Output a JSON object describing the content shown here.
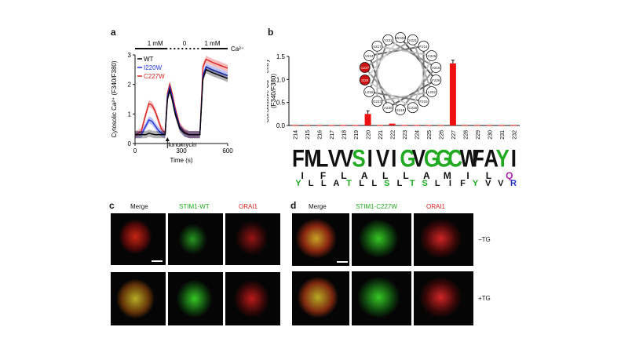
{
  "panels": {
    "a": {
      "letter": "a",
      "conditions": {
        "left": "1 mM",
        "middle": "0",
        "right": "1 mM",
        "ion": "Ca²⁺"
      },
      "ylabel": "Cytosolic Ca²⁺ (F340/F380)",
      "xlabel": "Time (s)",
      "annotation": "Ionomycin",
      "legend": [
        {
          "name": "WT",
          "color": "#000000"
        },
        {
          "name": "I220W",
          "color": "#2233dd"
        },
        {
          "name": "C227W",
          "color": "#dd2222"
        }
      ]
    },
    "b": {
      "letter": "b",
      "ylabel_line1": "Constitutive Ca²⁺ entry",
      "ylabel_line2": "(F340/F380)",
      "wheel_residues": [
        "W228",
        "V221",
        "F214",
        "C225",
        "V218",
        "F229",
        "L222",
        "F215",
        "C226",
        "S219",
        "A230",
        "G223",
        "L216",
        "I220",
        "C227",
        "V224",
        "V217",
        "Y231"
      ],
      "wheel_highlight": [
        "I220",
        "C227"
      ],
      "logo_top": [
        "F",
        "M",
        "L",
        "V",
        "V",
        "S",
        "I",
        "V",
        "I",
        "G",
        "V",
        "G",
        "G",
        "C",
        "W",
        "F",
        "A",
        "Y",
        "I"
      ],
      "logo_mid": [
        "I",
        "F",
        "L",
        "A",
        "L",
        "L",
        "A",
        "M",
        "I",
        "L",
        "Q"
      ],
      "logo_bottom": [
        "Y",
        "L",
        "L",
        "A",
        "T",
        "L",
        "L",
        "S",
        "L",
        "T",
        "S",
        "L",
        "I",
        "F",
        "Y",
        "V",
        "V",
        "R"
      ]
    },
    "c": {
      "letter": "c",
      "captions": [
        "Merge",
        "STIM1-WT",
        "ORAI1"
      ]
    },
    "d": {
      "letter": "d",
      "captions": [
        "Merge",
        "STIM1-C227W",
        "ORAI1"
      ],
      "row_labels": [
        "−TG",
        "+TG"
      ]
    }
  },
  "chart_data": [
    {
      "type": "line",
      "panel": "a",
      "xlabel": "Time (s)",
      "ylabel": "Cytosolic Ca²⁺ (F340/F380)",
      "xlim": [
        0,
        600
      ],
      "ylim": [
        0,
        3
      ],
      "xticks": [
        0,
        300,
        600
      ],
      "yticks": [
        0,
        1,
        2,
        3
      ],
      "x": [
        0,
        40,
        70,
        90,
        110,
        130,
        150,
        170,
        195,
        210,
        225,
        240,
        260,
        290,
        320,
        350,
        380,
        420,
        440,
        460,
        500,
        550,
        600
      ],
      "series": [
        {
          "name": "WT",
          "color": "#000000",
          "values": [
            0.3,
            0.3,
            0.3,
            0.35,
            0.32,
            0.3,
            0.3,
            0.3,
            0.3,
            1.5,
            1.8,
            1.5,
            1.0,
            0.5,
            0.35,
            0.3,
            0.3,
            0.3,
            2.2,
            2.5,
            2.4,
            2.3,
            2.2
          ]
        },
        {
          "name": "I220W",
          "color": "#2233dd",
          "values": [
            0.3,
            0.3,
            0.6,
            0.8,
            0.75,
            0.6,
            0.45,
            0.35,
            0.3,
            1.6,
            1.9,
            1.6,
            1.1,
            0.55,
            0.35,
            0.3,
            0.3,
            0.3,
            2.3,
            2.6,
            2.5,
            2.4,
            2.3
          ]
        },
        {
          "name": "C227W",
          "color": "#dd2222",
          "values": [
            0.3,
            0.4,
            1.0,
            1.35,
            1.3,
            1.1,
            0.8,
            0.5,
            0.35,
            1.7,
            2.0,
            1.7,
            1.2,
            0.6,
            0.4,
            0.3,
            0.3,
            0.3,
            2.6,
            2.85,
            2.75,
            2.65,
            2.55
          ]
        }
      ]
    },
    {
      "type": "bar",
      "panel": "b",
      "ylabel": "Constitutive Ca²⁺ entry (F340/F380)",
      "ylim": [
        0,
        1.5
      ],
      "yticks": [
        0,
        0.5,
        1.0,
        1.5
      ],
      "categories": [
        "214",
        "215",
        "216",
        "217",
        "218",
        "219",
        "220",
        "221",
        "222",
        "223",
        "224",
        "225",
        "226",
        "227",
        "228",
        "229",
        "230",
        "231",
        "232"
      ],
      "values": [
        0.01,
        0.01,
        0.01,
        0.01,
        0.01,
        0.01,
        0.25,
        0.01,
        0.04,
        0.01,
        0.01,
        0.01,
        0.01,
        1.35,
        0.01,
        0.01,
        0.01,
        0.01,
        0.01
      ],
      "color": "#ee1111"
    }
  ]
}
